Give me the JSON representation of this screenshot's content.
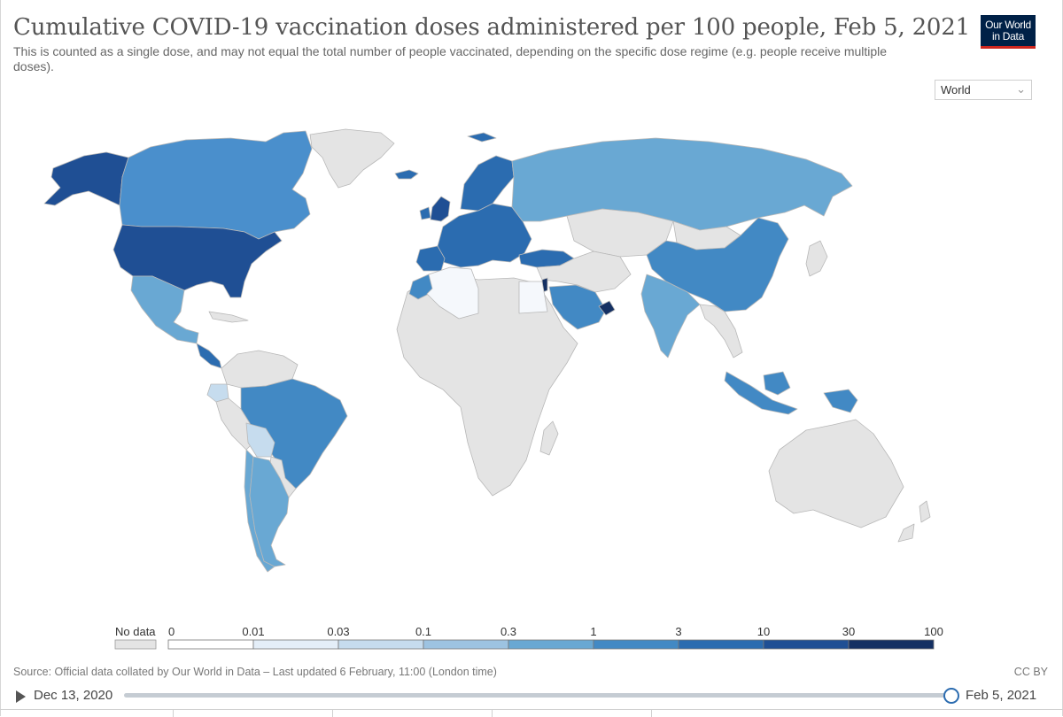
{
  "header": {
    "title": "Cumulative COVID-19 vaccination doses administered per 100 people, Feb 5, 2021",
    "subtitle": "This is counted as a single dose, and may not equal the total number of people vaccinated, depending on the specific dose regime (e.g. people receive multiple doses).",
    "logo_line1": "Our World",
    "logo_line2": "in Data"
  },
  "region_select": {
    "value": "World"
  },
  "legend": {
    "no_data_label": "No data",
    "bins": [
      {
        "label": "0",
        "color": "#ffffff"
      },
      {
        "label": "0.01",
        "color": "#e4eef8"
      },
      {
        "label": "0.03",
        "color": "#c6dcee"
      },
      {
        "label": "0.1",
        "color": "#9dc3e1"
      },
      {
        "label": "0.3",
        "color": "#69a8d3"
      },
      {
        "label": "1",
        "color": "#4289c4"
      },
      {
        "label": "3",
        "color": "#2b6cb0"
      },
      {
        "label": "10",
        "color": "#1f4f94"
      },
      {
        "label": "30",
        "color": "#143063"
      }
    ],
    "end_label": "100",
    "no_data_color": "#e4e4e4"
  },
  "footer": {
    "source": "Source: Official data collated by Our World in Data – Last updated 6 February, 11:00 (London time)",
    "license": "CC BY"
  },
  "timeline": {
    "start_label": "Dec 13, 2020",
    "end_label": "Feb 5, 2021"
  },
  "map_colors": {
    "no_data": "#e4e4e4",
    "border": "#b8b8b8",
    "usa": "#1f4f94",
    "canada": "#4a8fcc",
    "alaska": "#1f4f94",
    "mexico": "#69a8d3",
    "russia": "#69a8d3",
    "china": "#4289c4",
    "india": "#69a8d3",
    "europe": "#2b6cb0",
    "uk": "#1f4f94",
    "brazil": "#4289c4",
    "argentina": "#69a8d3",
    "chile": "#69a8d3",
    "bolivia": "#c6dcee",
    "saudi": "#4289c4",
    "uae": "#143063",
    "turkey": "#2b6cb0",
    "indonesia": "#4289c4",
    "algeria": "#f5f8fc"
  }
}
